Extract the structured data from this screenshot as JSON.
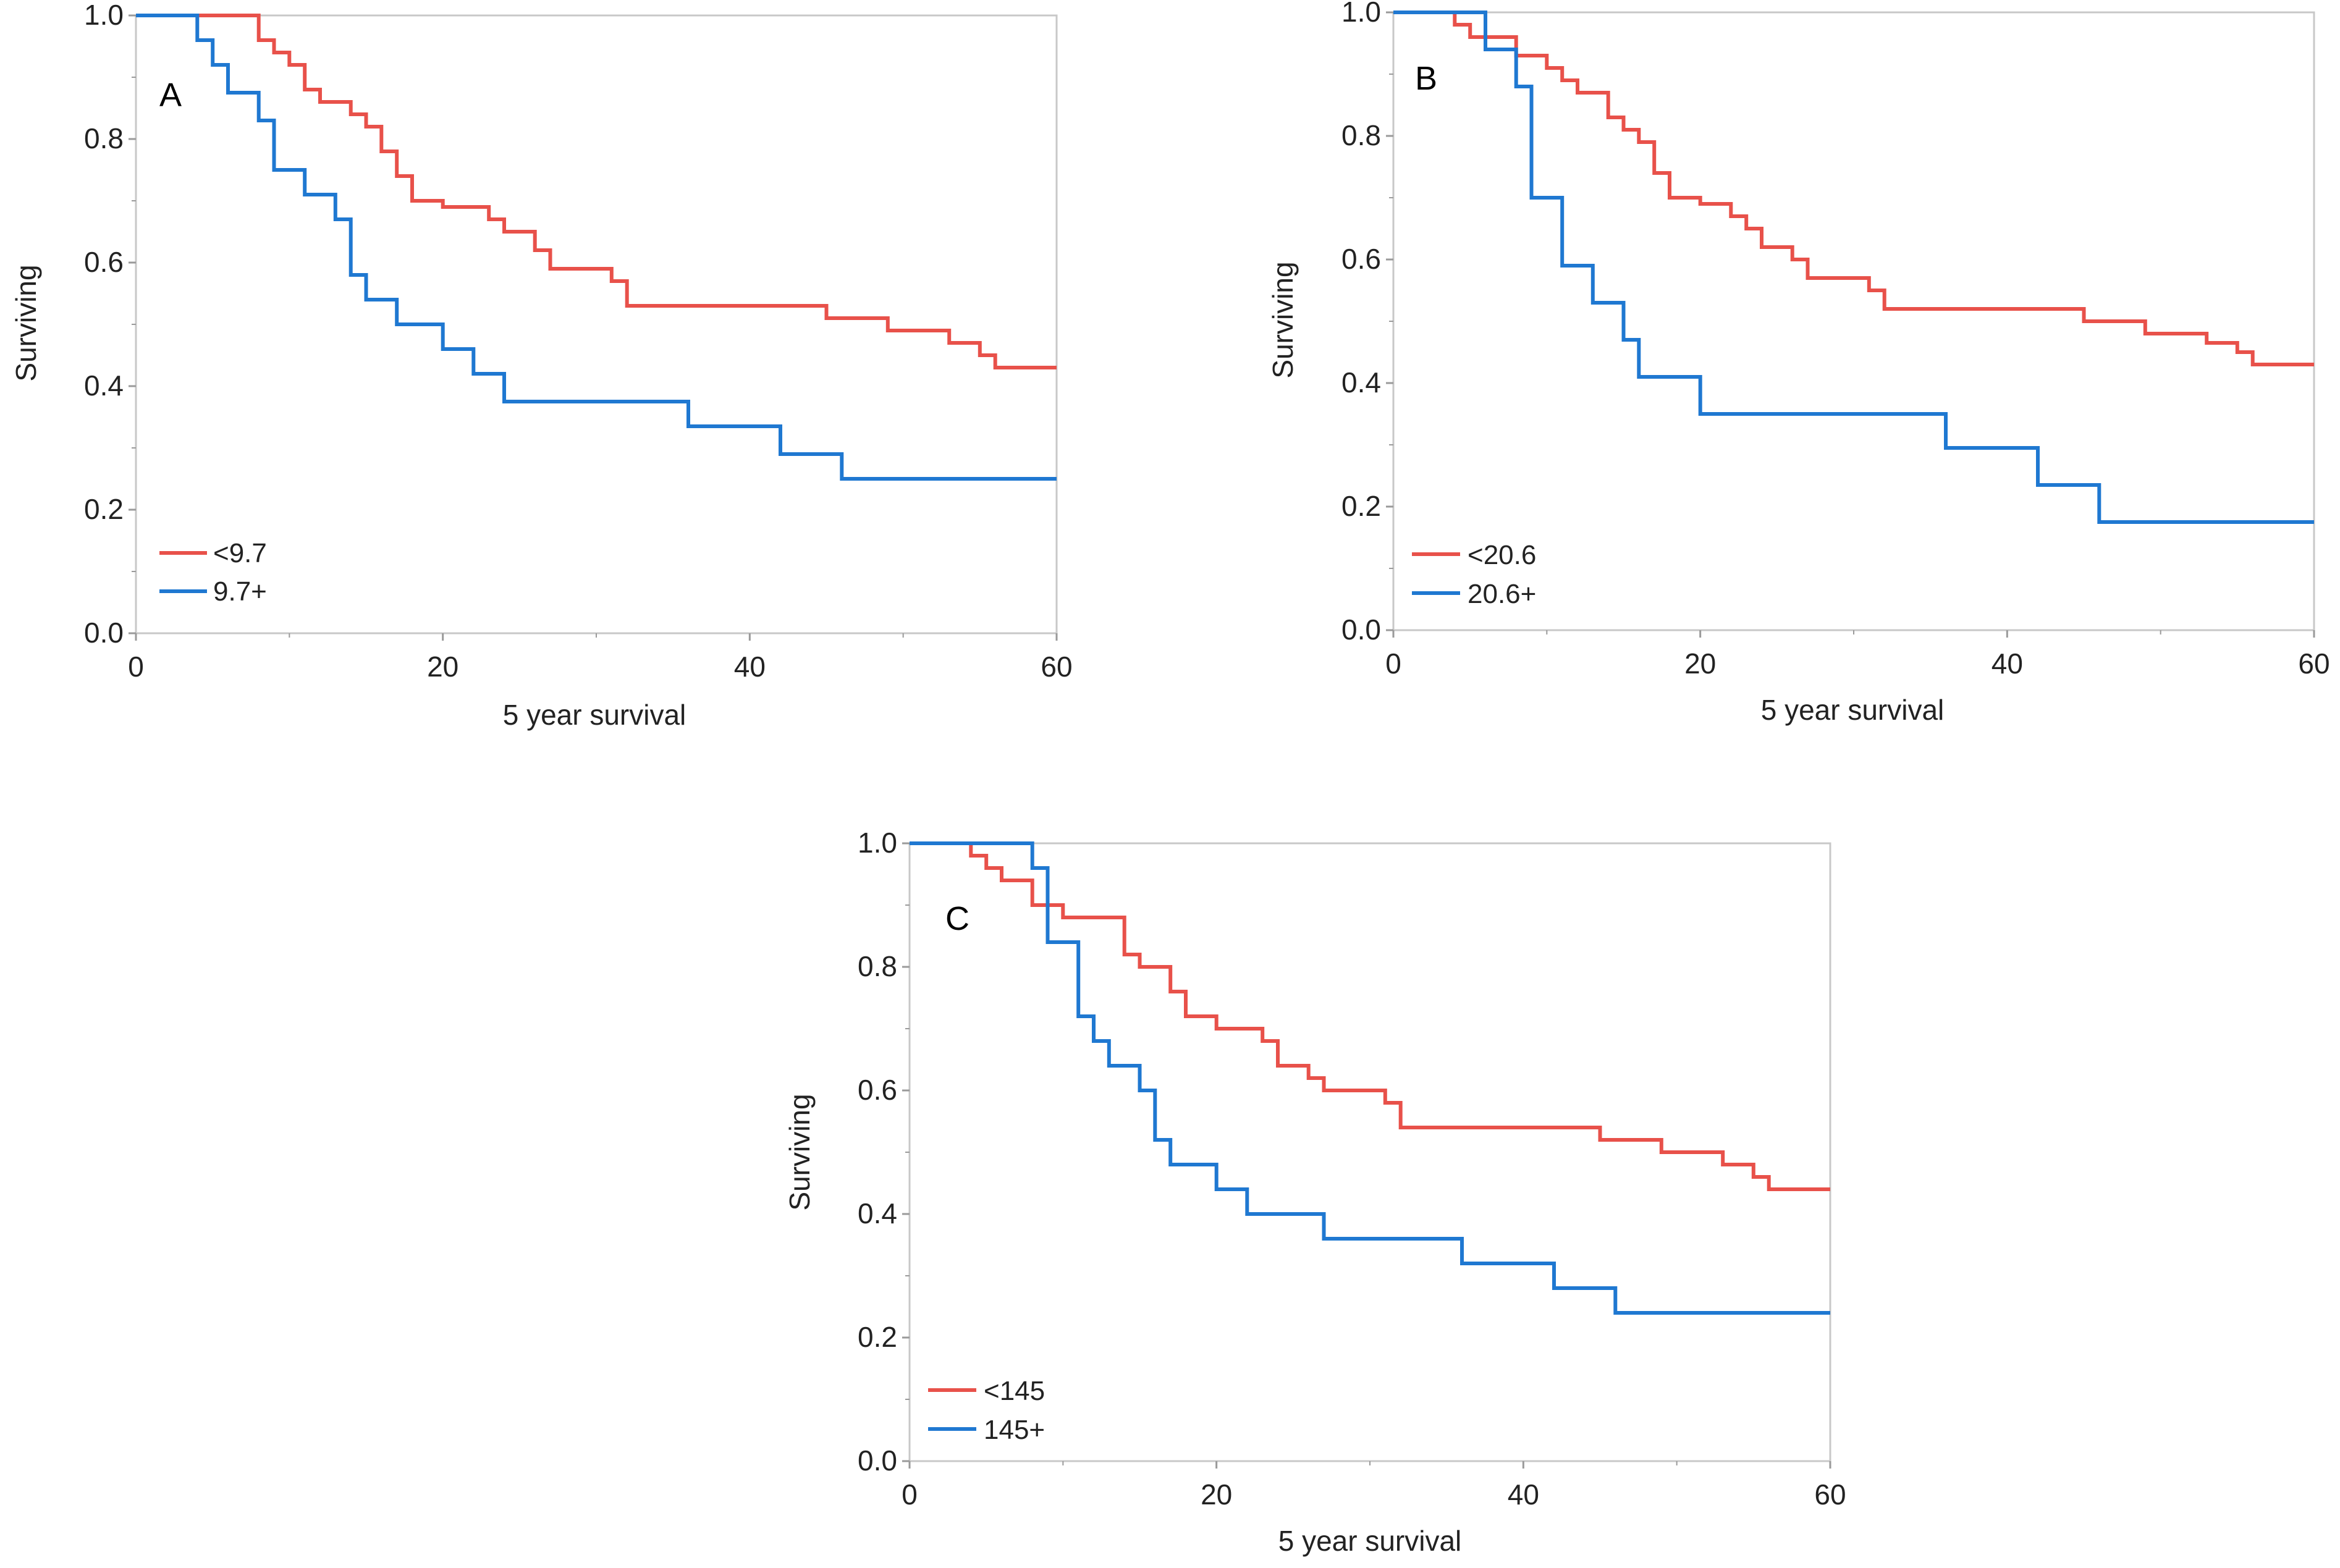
{
  "colors": {
    "group1": "#e8514a",
    "group2": "#1f78d1",
    "frame": "#c8c8c8",
    "axis": "#9a9a9a",
    "text": "#222222"
  },
  "chart_data": [
    {
      "type": "line",
      "step": true,
      "panel_label": "A",
      "xlabel": "5 year survival",
      "ylabel": "Surviving",
      "xlim": [
        0,
        60
      ],
      "ylim": [
        0,
        1
      ],
      "x_ticks": [
        "0",
        "20",
        "40",
        "60"
      ],
      "y_ticks": [
        "0.0",
        "0.2",
        "0.4",
        "0.6",
        "0.8",
        "1.0"
      ],
      "legend_position": "bottom-left",
      "series": [
        {
          "name": "<9.7",
          "color": "#e8514a",
          "points": [
            [
              0,
              1.0
            ],
            [
              8,
              1.0
            ],
            [
              8,
              0.96
            ],
            [
              9,
              0.96
            ],
            [
              9,
              0.94
            ],
            [
              10,
              0.94
            ],
            [
              10,
              0.92
            ],
            [
              11,
              0.92
            ],
            [
              11,
              0.88
            ],
            [
              12,
              0.88
            ],
            [
              12,
              0.86
            ],
            [
              14,
              0.86
            ],
            [
              14,
              0.84
            ],
            [
              15,
              0.84
            ],
            [
              15,
              0.82
            ],
            [
              16,
              0.82
            ],
            [
              16,
              0.78
            ],
            [
              17,
              0.78
            ],
            [
              17,
              0.74
            ],
            [
              18,
              0.74
            ],
            [
              18,
              0.7
            ],
            [
              20,
              0.7
            ],
            [
              20,
              0.69
            ],
            [
              23,
              0.69
            ],
            [
              23,
              0.67
            ],
            [
              24,
              0.67
            ],
            [
              24,
              0.65
            ],
            [
              26,
              0.65
            ],
            [
              26,
              0.62
            ],
            [
              27,
              0.62
            ],
            [
              27,
              0.59
            ],
            [
              31,
              0.59
            ],
            [
              31,
              0.57
            ],
            [
              32,
              0.57
            ],
            [
              32,
              0.53
            ],
            [
              45,
              0.53
            ],
            [
              45,
              0.51
            ],
            [
              49,
              0.51
            ],
            [
              49,
              0.49
            ],
            [
              53,
              0.49
            ],
            [
              53,
              0.47
            ],
            [
              55,
              0.47
            ],
            [
              55,
              0.45
            ],
            [
              56,
              0.45
            ],
            [
              56,
              0.43
            ],
            [
              60,
              0.43
            ]
          ]
        },
        {
          "name": "9.7+",
          "color": "#1f78d1",
          "points": [
            [
              0,
              1.0
            ],
            [
              4,
              1.0
            ],
            [
              4,
              0.96
            ],
            [
              5,
              0.96
            ],
            [
              5,
              0.92
            ],
            [
              6,
              0.92
            ],
            [
              6,
              0.875
            ],
            [
              8,
              0.875
            ],
            [
              8,
              0.83
            ],
            [
              9,
              0.83
            ],
            [
              9,
              0.75
            ],
            [
              11,
              0.75
            ],
            [
              11,
              0.71
            ],
            [
              13,
              0.71
            ],
            [
              13,
              0.67
            ],
            [
              14,
              0.67
            ],
            [
              14,
              0.58
            ],
            [
              15,
              0.58
            ],
            [
              15,
              0.54
            ],
            [
              17,
              0.54
            ],
            [
              17,
              0.5
            ],
            [
              20,
              0.5
            ],
            [
              20,
              0.46
            ],
            [
              22,
              0.46
            ],
            [
              22,
              0.42
            ],
            [
              24,
              0.42
            ],
            [
              24,
              0.375
            ],
            [
              36,
              0.375
            ],
            [
              36,
              0.335
            ],
            [
              42,
              0.335
            ],
            [
              42,
              0.29
            ],
            [
              46,
              0.29
            ],
            [
              46,
              0.25
            ],
            [
              60,
              0.25
            ]
          ]
        }
      ]
    },
    {
      "type": "line",
      "step": true,
      "panel_label": "B",
      "xlabel": "5 year survival",
      "ylabel": "Surviving",
      "xlim": [
        0,
        60
      ],
      "ylim": [
        0,
        1
      ],
      "x_ticks": [
        "0",
        "20",
        "40",
        "60"
      ],
      "y_ticks": [
        "0.0",
        "0.2",
        "0.4",
        "0.6",
        "0.8",
        "1.0"
      ],
      "legend_position": "bottom-left",
      "series": [
        {
          "name": "<20.6",
          "color": "#e8514a",
          "points": [
            [
              0,
              1.0
            ],
            [
              4,
              1.0
            ],
            [
              4,
              0.98
            ],
            [
              5,
              0.98
            ],
            [
              5,
              0.96
            ],
            [
              8,
              0.96
            ],
            [
              8,
              0.93
            ],
            [
              10,
              0.93
            ],
            [
              10,
              0.91
            ],
            [
              11,
              0.91
            ],
            [
              11,
              0.89
            ],
            [
              12,
              0.89
            ],
            [
              12,
              0.87
            ],
            [
              14,
              0.87
            ],
            [
              14,
              0.83
            ],
            [
              15,
              0.83
            ],
            [
              15,
              0.81
            ],
            [
              16,
              0.81
            ],
            [
              16,
              0.79
            ],
            [
              17,
              0.79
            ],
            [
              17,
              0.74
            ],
            [
              18,
              0.74
            ],
            [
              18,
              0.7
            ],
            [
              20,
              0.7
            ],
            [
              20,
              0.69
            ],
            [
              22,
              0.69
            ],
            [
              22,
              0.67
            ],
            [
              23,
              0.67
            ],
            [
              23,
              0.65
            ],
            [
              24,
              0.65
            ],
            [
              24,
              0.62
            ],
            [
              26,
              0.62
            ],
            [
              26,
              0.6
            ],
            [
              27,
              0.6
            ],
            [
              27,
              0.57
            ],
            [
              31,
              0.57
            ],
            [
              31,
              0.55
            ],
            [
              32,
              0.55
            ],
            [
              32,
              0.52
            ],
            [
              45,
              0.52
            ],
            [
              45,
              0.5
            ],
            [
              49,
              0.5
            ],
            [
              49,
              0.48
            ],
            [
              53,
              0.48
            ],
            [
              53,
              0.465
            ],
            [
              55,
              0.465
            ],
            [
              55,
              0.45
            ],
            [
              56,
              0.45
            ],
            [
              56,
              0.43
            ],
            [
              60,
              0.43
            ]
          ]
        },
        {
          "name": "20.6+",
          "color": "#1f78d1",
          "points": [
            [
              0,
              1.0
            ],
            [
              6,
              1.0
            ],
            [
              6,
              0.94
            ],
            [
              8,
              0.94
            ],
            [
              8,
              0.88
            ],
            [
              9,
              0.88
            ],
            [
              9,
              0.7
            ],
            [
              11,
              0.7
            ],
            [
              11,
              0.59
            ],
            [
              13,
              0.59
            ],
            [
              13,
              0.53
            ],
            [
              15,
              0.53
            ],
            [
              15,
              0.47
            ],
            [
              16,
              0.47
            ],
            [
              16,
              0.41
            ],
            [
              20,
              0.41
            ],
            [
              20,
              0.35
            ],
            [
              36,
              0.35
            ],
            [
              36,
              0.295
            ],
            [
              42,
              0.295
            ],
            [
              42,
              0.235
            ],
            [
              46,
              0.235
            ],
            [
              46,
              0.175
            ],
            [
              60,
              0.175
            ]
          ]
        }
      ]
    },
    {
      "type": "line",
      "step": true,
      "panel_label": "C",
      "xlabel": "5 year survival",
      "ylabel": "Surviving",
      "xlim": [
        0,
        60
      ],
      "ylim": [
        0,
        1
      ],
      "x_ticks": [
        "0",
        "20",
        "40",
        "60"
      ],
      "y_ticks": [
        "0.0",
        "0.2",
        "0.4",
        "0.6",
        "0.8",
        "1.0"
      ],
      "legend_position": "bottom-left",
      "series": [
        {
          "name": "<145",
          "color": "#e8514a",
          "points": [
            [
              0,
              1.0
            ],
            [
              4,
              1.0
            ],
            [
              4,
              0.98
            ],
            [
              5,
              0.98
            ],
            [
              5,
              0.96
            ],
            [
              6,
              0.96
            ],
            [
              6,
              0.94
            ],
            [
              8,
              0.94
            ],
            [
              8,
              0.9
            ],
            [
              10,
              0.9
            ],
            [
              10,
              0.88
            ],
            [
              14,
              0.88
            ],
            [
              14,
              0.82
            ],
            [
              15,
              0.82
            ],
            [
              15,
              0.8
            ],
            [
              17,
              0.8
            ],
            [
              17,
              0.76
            ],
            [
              18,
              0.76
            ],
            [
              18,
              0.72
            ],
            [
              20,
              0.72
            ],
            [
              20,
              0.7
            ],
            [
              23,
              0.7
            ],
            [
              23,
              0.68
            ],
            [
              24,
              0.68
            ],
            [
              24,
              0.64
            ],
            [
              26,
              0.64
            ],
            [
              26,
              0.62
            ],
            [
              27,
              0.62
            ],
            [
              27,
              0.6
            ],
            [
              31,
              0.6
            ],
            [
              31,
              0.58
            ],
            [
              32,
              0.58
            ],
            [
              32,
              0.54
            ],
            [
              45,
              0.54
            ],
            [
              45,
              0.52
            ],
            [
              49,
              0.52
            ],
            [
              49,
              0.5
            ],
            [
              53,
              0.5
            ],
            [
              53,
              0.48
            ],
            [
              55,
              0.48
            ],
            [
              55,
              0.46
            ],
            [
              56,
              0.46
            ],
            [
              56,
              0.44
            ],
            [
              60,
              0.44
            ]
          ]
        },
        {
          "name": "145+",
          "color": "#1f78d1",
          "points": [
            [
              0,
              1.0
            ],
            [
              8,
              1.0
            ],
            [
              8,
              0.96
            ],
            [
              9,
              0.96
            ],
            [
              9,
              0.84
            ],
            [
              11,
              0.84
            ],
            [
              11,
              0.72
            ],
            [
              12,
              0.72
            ],
            [
              12,
              0.68
            ],
            [
              13,
              0.68
            ],
            [
              13,
              0.64
            ],
            [
              15,
              0.64
            ],
            [
              15,
              0.6
            ],
            [
              16,
              0.6
            ],
            [
              16,
              0.52
            ],
            [
              17,
              0.52
            ],
            [
              17,
              0.48
            ],
            [
              20,
              0.48
            ],
            [
              20,
              0.44
            ],
            [
              22,
              0.44
            ],
            [
              22,
              0.4
            ],
            [
              27,
              0.4
            ],
            [
              27,
              0.36
            ],
            [
              36,
              0.36
            ],
            [
              36,
              0.32
            ],
            [
              42,
              0.32
            ],
            [
              42,
              0.28
            ],
            [
              46,
              0.28
            ],
            [
              46,
              0.24
            ],
            [
              60,
              0.24
            ]
          ]
        }
      ]
    }
  ]
}
